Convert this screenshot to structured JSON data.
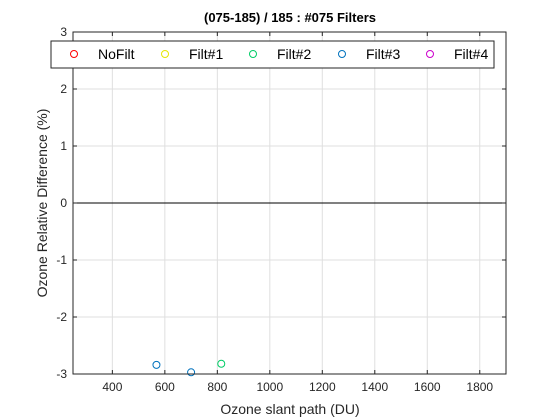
{
  "chart_data": {
    "type": "scatter",
    "title": "(075-185) / 185 : #075 Filters",
    "xlabel": "Ozone slant path (DU)",
    "ylabel": "Ozone Relative Difference (%)",
    "xlim": [
      250,
      1900
    ],
    "ylim": [
      -3,
      3
    ],
    "xticks": [
      400,
      600,
      800,
      1000,
      1200,
      1400,
      1600,
      1800
    ],
    "yticks": [
      -3,
      -2,
      -1,
      0,
      1,
      2,
      3
    ],
    "grid": true,
    "zero_line": true,
    "legend": {
      "position": "top",
      "orientation": "horizontal"
    },
    "series": [
      {
        "name": "NoFilt",
        "color": "#ff0000",
        "marker": "open-circle",
        "points": []
      },
      {
        "name": "Filt#1",
        "color": "#e6e600",
        "marker": "open-circle",
        "points": []
      },
      {
        "name": "Filt#2",
        "color": "#00cc66",
        "marker": "open-circle",
        "points": [
          [
            815,
            -2.82
          ]
        ]
      },
      {
        "name": "Filt#3",
        "color": "#0072bd",
        "marker": "open-circle",
        "points": [
          [
            568,
            -2.84
          ],
          [
            700,
            -2.97
          ]
        ]
      },
      {
        "name": "Filt#4",
        "color": "#cc00cc",
        "marker": "open-circle",
        "points": []
      }
    ]
  }
}
